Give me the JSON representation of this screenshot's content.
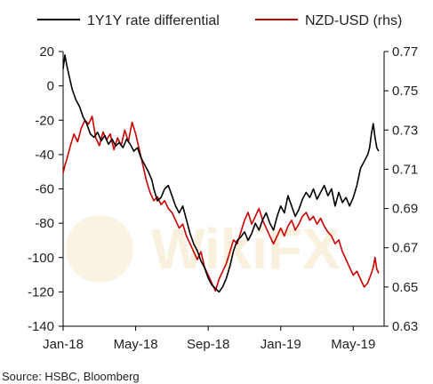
{
  "chart_data": {
    "type": "line",
    "title": "",
    "xlabel": "",
    "ylabel": "",
    "ylabel_right": "",
    "x_tick_labels": [
      "Jan-18",
      "May-18",
      "Sep-18",
      "Jan-19",
      "May-19"
    ],
    "x_tick_months": [
      0,
      4,
      8,
      12,
      16
    ],
    "x_range_months": [
      0,
      17.7
    ],
    "ylim_left": [
      -140,
      20
    ],
    "y_ticks_left": [
      "20",
      "0",
      "-20",
      "-40",
      "-60",
      "-80",
      "-100",
      "-120",
      "-140"
    ],
    "ylim_right": [
      0.63,
      0.77
    ],
    "y_ticks_right": [
      "0.77",
      "0.75",
      "0.73",
      "0.71",
      "0.69",
      "0.67",
      "0.65",
      "0.63"
    ],
    "grid": false,
    "legend_position": "top",
    "series": [
      {
        "name": "1Y1Y rate differential",
        "axis": "left",
        "color": "#000000",
        "points": [
          [
            0.0,
            10
          ],
          [
            0.1,
            18
          ],
          [
            0.2,
            12
          ],
          [
            0.35,
            5
          ],
          [
            0.5,
            -2
          ],
          [
            0.7,
            -8
          ],
          [
            0.9,
            -12
          ],
          [
            1.1,
            -18
          ],
          [
            1.3,
            -22
          ],
          [
            1.5,
            -28
          ],
          [
            1.7,
            -30
          ],
          [
            1.9,
            -27
          ],
          [
            2.1,
            -32
          ],
          [
            2.3,
            -29
          ],
          [
            2.5,
            -34
          ],
          [
            2.7,
            -31
          ],
          [
            2.9,
            -35
          ],
          [
            3.1,
            -33
          ],
          [
            3.3,
            -36
          ],
          [
            3.5,
            -31
          ],
          [
            3.7,
            -34
          ],
          [
            3.9,
            -38
          ],
          [
            4.1,
            -36
          ],
          [
            4.3,
            -42
          ],
          [
            4.5,
            -46
          ],
          [
            4.7,
            -50
          ],
          [
            4.9,
            -55
          ],
          [
            5.0,
            -60
          ],
          [
            5.2,
            -67
          ],
          [
            5.4,
            -65
          ],
          [
            5.6,
            -60
          ],
          [
            5.8,
            -58
          ],
          [
            6.0,
            -64
          ],
          [
            6.2,
            -70
          ],
          [
            6.4,
            -74
          ],
          [
            6.6,
            -70
          ],
          [
            6.8,
            -78
          ],
          [
            7.0,
            -86
          ],
          [
            7.2,
            -92
          ],
          [
            7.4,
            -96
          ],
          [
            7.6,
            -102
          ],
          [
            7.8,
            -106
          ],
          [
            8.0,
            -112
          ],
          [
            8.2,
            -116
          ],
          [
            8.4,
            -118
          ],
          [
            8.6,
            -120
          ],
          [
            8.8,
            -117
          ],
          [
            9.0,
            -112
          ],
          [
            9.2,
            -105
          ],
          [
            9.4,
            -96
          ],
          [
            9.6,
            -90
          ],
          [
            9.8,
            -88
          ],
          [
            10.0,
            -85
          ],
          [
            10.2,
            -90
          ],
          [
            10.4,
            -86
          ],
          [
            10.6,
            -80
          ],
          [
            10.8,
            -84
          ],
          [
            11.0,
            -78
          ],
          [
            11.2,
            -74
          ],
          [
            11.4,
            -80
          ],
          [
            11.6,
            -84
          ],
          [
            11.8,
            -76
          ],
          [
            12.0,
            -70
          ],
          [
            12.2,
            -74
          ],
          [
            12.4,
            -64
          ],
          [
            12.6,
            -70
          ],
          [
            12.8,
            -76
          ],
          [
            13.0,
            -72
          ],
          [
            13.2,
            -66
          ],
          [
            13.4,
            -62
          ],
          [
            13.6,
            -65
          ],
          [
            13.8,
            -60
          ],
          [
            14.0,
            -66
          ],
          [
            14.2,
            -62
          ],
          [
            14.4,
            -58
          ],
          [
            14.6,
            -64
          ],
          [
            14.8,
            -60
          ],
          [
            15.0,
            -70
          ],
          [
            15.2,
            -62
          ],
          [
            15.4,
            -68
          ],
          [
            15.6,
            -65
          ],
          [
            15.8,
            -70
          ],
          [
            16.0,
            -65
          ],
          [
            16.2,
            -58
          ],
          [
            16.4,
            -48
          ],
          [
            16.6,
            -44
          ],
          [
            16.8,
            -40
          ],
          [
            16.9,
            -36
          ],
          [
            17.0,
            -28
          ],
          [
            17.1,
            -22
          ],
          [
            17.2,
            -30
          ],
          [
            17.3,
            -36
          ],
          [
            17.4,
            -38
          ]
        ]
      },
      {
        "name": "NZD-USD (rhs)",
        "axis": "right",
        "color": "#cc0000",
        "points": [
          [
            0.0,
            0.708
          ],
          [
            0.1,
            0.712
          ],
          [
            0.2,
            0.715
          ],
          [
            0.4,
            0.722
          ],
          [
            0.6,
            0.728
          ],
          [
            0.8,
            0.724
          ],
          [
            1.0,
            0.731
          ],
          [
            1.2,
            0.735
          ],
          [
            1.4,
            0.733
          ],
          [
            1.6,
            0.737
          ],
          [
            1.8,
            0.726
          ],
          [
            2.0,
            0.722
          ],
          [
            2.2,
            0.729
          ],
          [
            2.4,
            0.725
          ],
          [
            2.6,
            0.728
          ],
          [
            2.8,
            0.72
          ],
          [
            3.0,
            0.726
          ],
          [
            3.2,
            0.722
          ],
          [
            3.4,
            0.73
          ],
          [
            3.6,
            0.724
          ],
          [
            3.8,
            0.734
          ],
          [
            4.0,
            0.728
          ],
          [
            4.2,
            0.72
          ],
          [
            4.4,
            0.712
          ],
          [
            4.6,
            0.704
          ],
          [
            4.8,
            0.698
          ],
          [
            5.0,
            0.694
          ],
          [
            5.2,
            0.696
          ],
          [
            5.4,
            0.692
          ],
          [
            5.6,
            0.694
          ],
          [
            5.8,
            0.69
          ],
          [
            6.0,
            0.688
          ],
          [
            6.2,
            0.684
          ],
          [
            6.4,
            0.68
          ],
          [
            6.6,
            0.682
          ],
          [
            6.8,
            0.676
          ],
          [
            7.0,
            0.672
          ],
          [
            7.2,
            0.668
          ],
          [
            7.4,
            0.664
          ],
          [
            7.6,
            0.668
          ],
          [
            7.8,
            0.66
          ],
          [
            8.0,
            0.656
          ],
          [
            8.2,
            0.652
          ],
          [
            8.4,
            0.648
          ],
          [
            8.6,
            0.654
          ],
          [
            8.8,
            0.658
          ],
          [
            9.0,
            0.662
          ],
          [
            9.2,
            0.668
          ],
          [
            9.4,
            0.674
          ],
          [
            9.6,
            0.672
          ],
          [
            9.8,
            0.678
          ],
          [
            10.0,
            0.684
          ],
          [
            10.2,
            0.688
          ],
          [
            10.4,
            0.682
          ],
          [
            10.6,
            0.686
          ],
          [
            10.8,
            0.69
          ],
          [
            11.0,
            0.684
          ],
          [
            11.2,
            0.68
          ],
          [
            11.4,
            0.676
          ],
          [
            11.6,
            0.672
          ],
          [
            11.8,
            0.676
          ],
          [
            12.0,
            0.68
          ],
          [
            12.2,
            0.676
          ],
          [
            12.4,
            0.681
          ],
          [
            12.6,
            0.684
          ],
          [
            12.8,
            0.679
          ],
          [
            13.0,
            0.682
          ],
          [
            13.2,
            0.686
          ],
          [
            13.4,
            0.688
          ],
          [
            13.6,
            0.684
          ],
          [
            13.8,
            0.686
          ],
          [
            14.0,
            0.682
          ],
          [
            14.2,
            0.685
          ],
          [
            14.4,
            0.681
          ],
          [
            14.6,
            0.678
          ],
          [
            14.8,
            0.676
          ],
          [
            15.0,
            0.672
          ],
          [
            15.2,
            0.674
          ],
          [
            15.4,
            0.668
          ],
          [
            15.6,
            0.664
          ],
          [
            15.8,
            0.66
          ],
          [
            16.0,
            0.656
          ],
          [
            16.2,
            0.658
          ],
          [
            16.4,
            0.654
          ],
          [
            16.6,
            0.65
          ],
          [
            16.8,
            0.652
          ],
          [
            17.0,
            0.657
          ],
          [
            17.1,
            0.66
          ],
          [
            17.2,
            0.665
          ],
          [
            17.3,
            0.659
          ],
          [
            17.4,
            0.657
          ]
        ]
      }
    ]
  },
  "footer": {
    "source": "Source: HSBC, Bloomberg"
  }
}
